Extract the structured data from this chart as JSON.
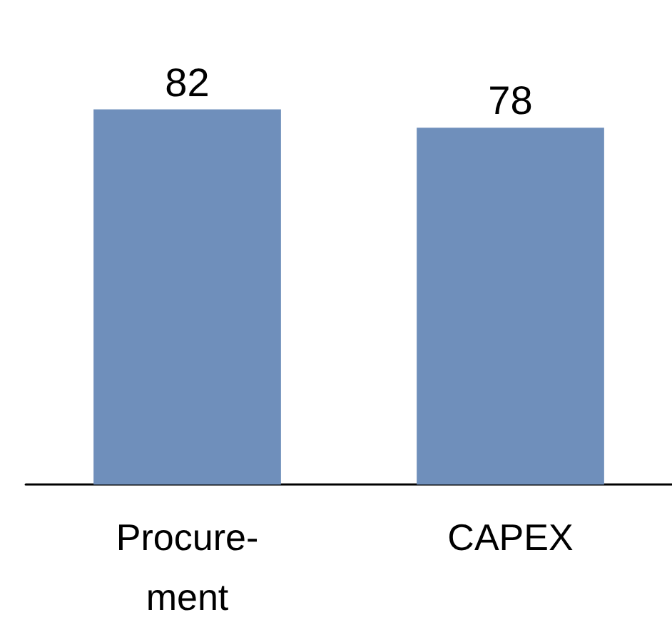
{
  "chart_data": {
    "type": "bar",
    "categories": [
      "Procure-\nment",
      "CAPEX"
    ],
    "values": [
      82,
      78
    ],
    "color": "#6f8fbb",
    "data_labels": true
  }
}
